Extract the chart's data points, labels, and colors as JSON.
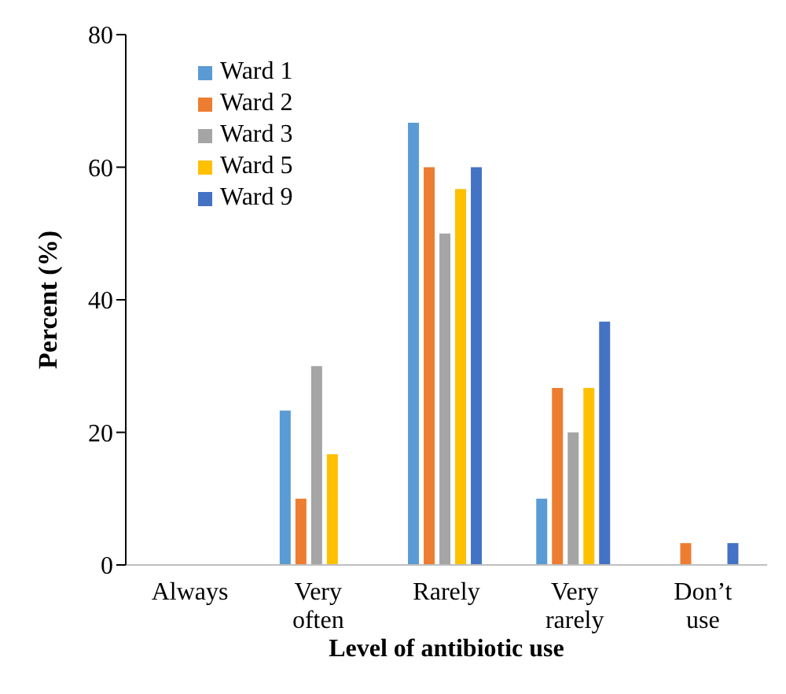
{
  "chart_data": {
    "type": "bar",
    "xlabel": "Level of antibiotic use",
    "ylabel": "Percent (%)",
    "categories": [
      "Always",
      "Very often",
      "Rarely",
      "Very rarely",
      "Don’t use"
    ],
    "series": [
      {
        "name": "Ward 1",
        "color": "#5b9bd5",
        "values": [
          0,
          23.3,
          66.7,
          10,
          0
        ]
      },
      {
        "name": "Ward 2",
        "color": "#ed7d31",
        "values": [
          0,
          10,
          60,
          26.7,
          3.3
        ]
      },
      {
        "name": "Ward 3",
        "color": "#a5a5a5",
        "values": [
          0,
          30,
          50,
          20,
          0
        ]
      },
      {
        "name": "Ward 5",
        "color": "#ffc000",
        "values": [
          0,
          16.7,
          56.7,
          26.7,
          0
        ]
      },
      {
        "name": "Ward 9",
        "color": "#4472c4",
        "values": [
          0,
          0,
          60,
          36.7,
          3.3
        ]
      }
    ],
    "ylim": [
      0,
      80
    ],
    "yticks": [
      0,
      20,
      40,
      60,
      80
    ],
    "grid": false,
    "legend": "top left"
  }
}
